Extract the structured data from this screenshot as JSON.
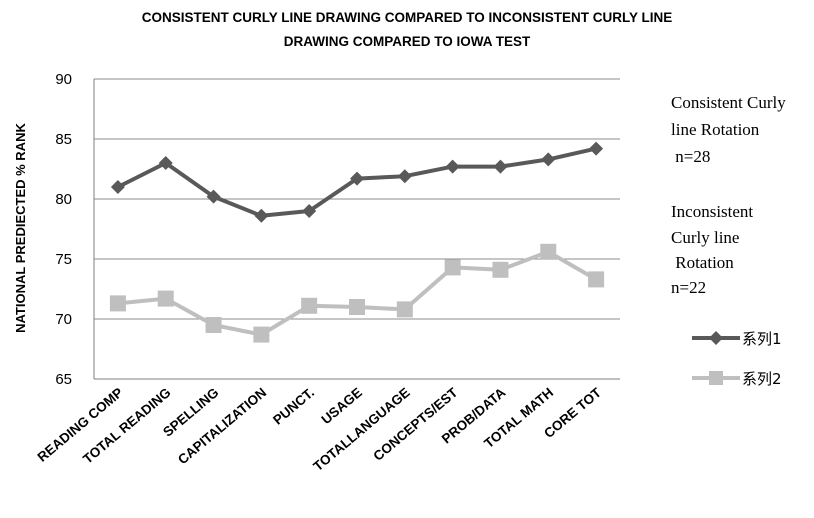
{
  "chart_data": {
    "type": "line",
    "title_lines": [
      "CONSISTENT CURLY LINE DRAWING COMPARED TO INCONSISTENT CURLY LINE",
      "DRAWING  COMPARED TO IOWA TEST"
    ],
    "xlabel": "",
    "ylabel": "NATIONAL PREDIECTED % RANK",
    "ylim": [
      65,
      90
    ],
    "yticks": [
      65,
      70,
      75,
      80,
      85,
      90
    ],
    "grid": true,
    "categories": [
      "READING COMP",
      "TOTAL READING",
      "SPELLING",
      "CAPITALIZATION",
      "PUNCT.",
      "USAGE",
      "TOTALLANGUAGE",
      "CONCEPTS/EST",
      "PROB/DATA",
      "TOTAL MATH",
      "CORE TOT"
    ],
    "series": [
      {
        "name": "系列1",
        "color": "#595959",
        "marker": "diamond",
        "values": [
          81.0,
          83.0,
          80.2,
          78.6,
          79.0,
          81.7,
          81.9,
          82.7,
          82.7,
          83.3,
          84.2
        ]
      },
      {
        "name": "系列2",
        "color": "#bfbfbf",
        "marker": "square",
        "values": [
          71.3,
          71.7,
          69.5,
          68.7,
          71.1,
          71.0,
          70.8,
          74.3,
          74.1,
          75.6,
          73.3
        ]
      }
    ],
    "legend_position": "right",
    "annotations": [
      [
        "Consistent Curly",
        "line Rotation",
        " n=28"
      ],
      [
        "Inconsistent",
        "Curly line",
        " Rotation",
        "n=22"
      ]
    ]
  }
}
